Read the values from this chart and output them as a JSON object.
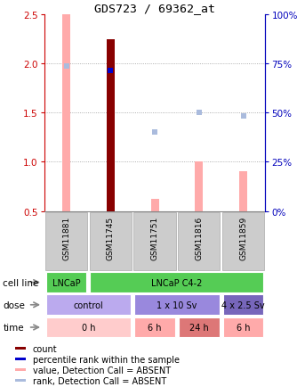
{
  "title": "GDS723 / 69362_at",
  "samples": [
    "GSM11881",
    "GSM11745",
    "GSM11751",
    "GSM11816",
    "GSM11859"
  ],
  "ylim_left": [
    0.5,
    2.5
  ],
  "ylim_right": [
    0,
    100
  ],
  "yticks_left": [
    0.5,
    1.0,
    1.5,
    2.0,
    2.5
  ],
  "yticks_right": [
    0,
    25,
    50,
    75,
    100
  ],
  "bar_present_values": [
    null,
    2.25,
    null,
    null,
    null
  ],
  "bar_absent_values": [
    2.5,
    null,
    0.62,
    1.0,
    0.9
  ],
  "rank_present": [
    null,
    1.93,
    null,
    null,
    null
  ],
  "rank_absent": [
    1.98,
    null,
    1.3,
    1.5,
    1.47
  ],
  "cell_line_data": [
    {
      "label": "LNCaP",
      "cols": [
        0,
        0
      ],
      "color": "#55cc55"
    },
    {
      "label": "LNCaP C4-2",
      "cols": [
        1,
        4
      ],
      "color": "#55cc55"
    }
  ],
  "dose_data": [
    {
      "label": "control",
      "cols": [
        0,
        1
      ],
      "color": "#bbaaee"
    },
    {
      "label": "1 x 10 Sv",
      "cols": [
        2,
        3
      ],
      "color": "#9988dd"
    },
    {
      "label": "4 x 2.5 Sv",
      "cols": [
        4,
        4
      ],
      "color": "#7766bb"
    }
  ],
  "time_data": [
    {
      "label": "0 h",
      "cols": [
        0,
        1
      ],
      "color": "#ffcccc"
    },
    {
      "label": "6 h",
      "cols": [
        2,
        2
      ],
      "color": "#ffaaaa"
    },
    {
      "label": "24 h",
      "cols": [
        3,
        3
      ],
      "color": "#dd7777"
    },
    {
      "label": "6 h",
      "cols": [
        4,
        4
      ],
      "color": "#ffaaaa"
    }
  ],
  "bar_color_present": "#880000",
  "bar_color_absent": "#ffaaaa",
  "dot_color_present": "#0000cc",
  "dot_color_absent": "#aabbdd",
  "grid_color": "#999999",
  "left_axis_color": "#cc0000",
  "right_axis_color": "#0000bb",
  "sample_box_color": "#cccccc",
  "sample_box_edge": "#aaaaaa",
  "legend_items": [
    {
      "color": "#880000",
      "label": "count"
    },
    {
      "color": "#0000cc",
      "label": "percentile rank within the sample"
    },
    {
      "color": "#ffaaaa",
      "label": "value, Detection Call = ABSENT"
    },
    {
      "color": "#aabbdd",
      "label": "rank, Detection Call = ABSENT"
    }
  ],
  "row_labels": [
    "cell line",
    "dose",
    "time"
  ],
  "arrow_color": "#888888"
}
